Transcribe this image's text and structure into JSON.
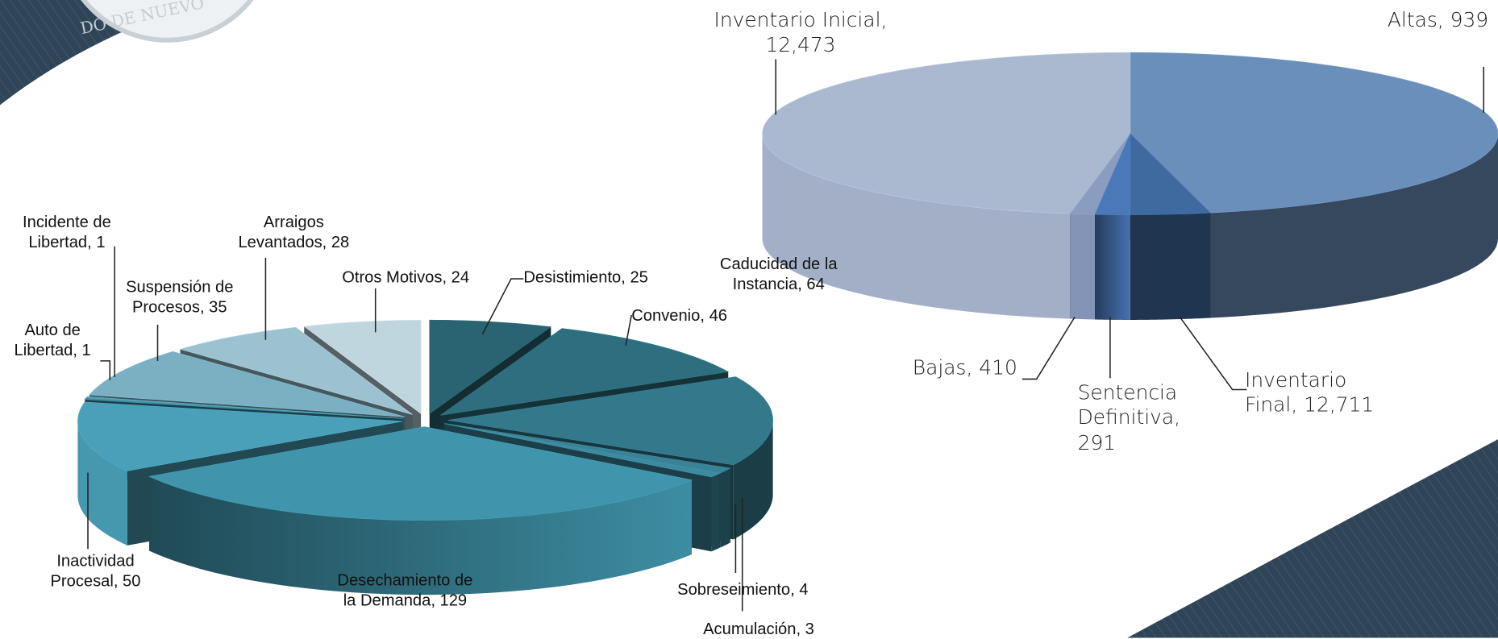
{
  "logo": {
    "text": "DO DE NUEVO"
  },
  "chart_data": [
    {
      "type": "pie3d",
      "categories": [
        "Desistimiento",
        "Convenio",
        "Caducidad de la Instancia",
        "Sobreseimiento",
        "Acumulación",
        "Desechamiento de la Demanda",
        "Inactividad Procesal",
        "Auto de Libertad",
        "Incidente de Libertad",
        "Suspensión de Procesos",
        "Arraigos Levantados",
        "Otros Motivos"
      ],
      "values": [
        25,
        46,
        64,
        4,
        3,
        129,
        50,
        1,
        1,
        35,
        28,
        24
      ],
      "colors": [
        "#2a6472",
        "#2e6e7e",
        "#33798b",
        "#3a8296",
        "#3d8aa0",
        "#4094ab",
        "#4aa0b8",
        "#3f8aa0",
        "#5a9fb4",
        "#7ab0c2",
        "#9cc2d0",
        "#c0d6de"
      ],
      "exploded": true
    },
    {
      "type": "pie3d",
      "categories": [
        "Inventario Inicial",
        "Altas",
        "Bajas",
        "Sentencia Definitiva",
        "Inventario Final"
      ],
      "values": [
        12473,
        939,
        410,
        291,
        12711
      ],
      "value_labels": [
        "12,473",
        "939",
        "410",
        "291",
        "12,711"
      ],
      "colors": [
        "#6b8fbb",
        "#3f6aa0",
        "#4a78b8",
        "#8a9cc0",
        "#aab8d0"
      ],
      "exploded": false
    }
  ]
}
